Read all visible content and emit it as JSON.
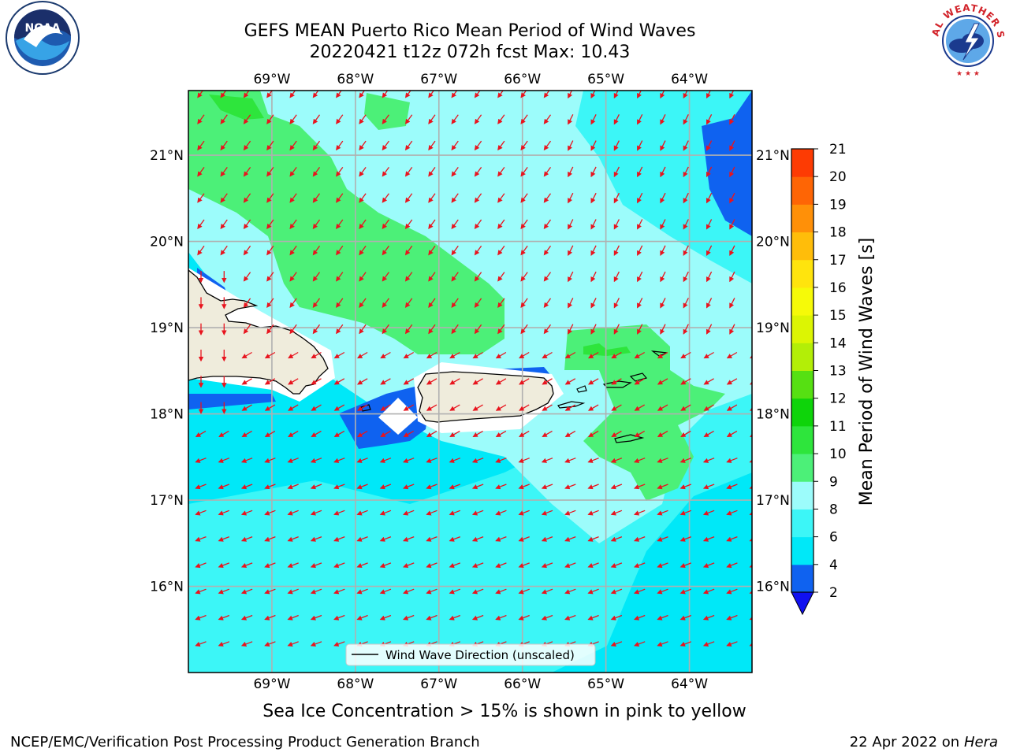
{
  "header": {
    "title_line1": "GEFS MEAN Puerto Rico Mean Period of Wind Waves",
    "title_line2": "20220421 t12z 072h fcst   Max: 10.43"
  },
  "logos": {
    "left_icon": "noaa-logo",
    "left_text": "NOAA",
    "right_icon": "nws-logo",
    "right_text": "NATIONAL WEATHER SERVICE"
  },
  "map": {
    "lon_labels": [
      "69°W",
      "68°W",
      "67°W",
      "66°W",
      "65°W",
      "64°W"
    ],
    "lat_labels": [
      "21°N",
      "20°N",
      "19°N",
      "18°N",
      "17°N",
      "16°N"
    ],
    "lon_values": [
      -69,
      -68,
      -67,
      -66,
      -65,
      -64
    ],
    "lat_values": [
      21,
      20,
      19,
      18,
      17,
      16
    ],
    "extent": {
      "lon_min": -70,
      "lon_max": -63.25,
      "lat_min": 15,
      "lat_max": 21.75
    },
    "legend_label": "Wind Wave Direction (unscaled)",
    "arrow_color": "#e8141e",
    "land_color": "#efecdc"
  },
  "colorbar": {
    "label": "Mean Period of Wind Waves [s]",
    "ticks": [
      "2",
      "4",
      "6",
      "8",
      "9",
      "10",
      "11",
      "12",
      "13",
      "14",
      "15",
      "16",
      "17",
      "18",
      "19",
      "20",
      "21"
    ],
    "colors": [
      "#0f62f0",
      "#00e8f8",
      "#3cf6f7",
      "#9cfcfb",
      "#4cf078",
      "#2ee53c",
      "#0ed40a",
      "#56e012",
      "#b3ee07",
      "#dcf503",
      "#f6fa08",
      "#ffe40d",
      "#ffbd0a",
      "#ff9008",
      "#fe6505",
      "#fd3b03",
      "#fa1402"
    ],
    "under_color": "#1010f0"
  },
  "footer": {
    "subtitle": "Sea Ice Concentration > 15% is shown in pink to yellow",
    "branch": "NCEP/EMC/Verification Post Processing Product Generation Branch",
    "date_text": "22 Apr 2022 on ",
    "machine": "Hera"
  }
}
